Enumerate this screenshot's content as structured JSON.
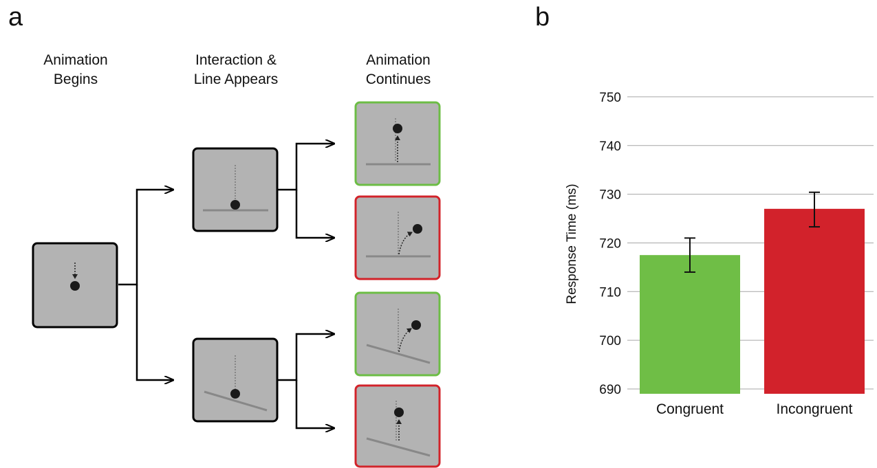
{
  "panels": {
    "a": "a",
    "b": "b"
  },
  "panel_a": {
    "columns": [
      {
        "line1": "Animation",
        "line2": "Begins"
      },
      {
        "line1": "Interaction &",
        "line2": "Line Appears"
      },
      {
        "line1": "Animation",
        "line2": "Continues"
      }
    ],
    "colors": {
      "box_fill": "#b3b3b3",
      "congruent_border": "#6cbd45",
      "incongruent_border": "#d2232a"
    }
  },
  "chart_data": {
    "type": "bar",
    "categories": [
      "Congruent",
      "Incongruent"
    ],
    "values": [
      717.5,
      727
    ],
    "error_low": [
      714,
      723.3
    ],
    "error_high": [
      721,
      730.4
    ],
    "colors": [
      "#6fbe46",
      "#d2222b"
    ],
    "ylabel": "Response Time (ms)",
    "ylim": [
      689,
      755
    ],
    "yticks": [
      690,
      700,
      710,
      720,
      730,
      740,
      750
    ],
    "grid": true
  }
}
